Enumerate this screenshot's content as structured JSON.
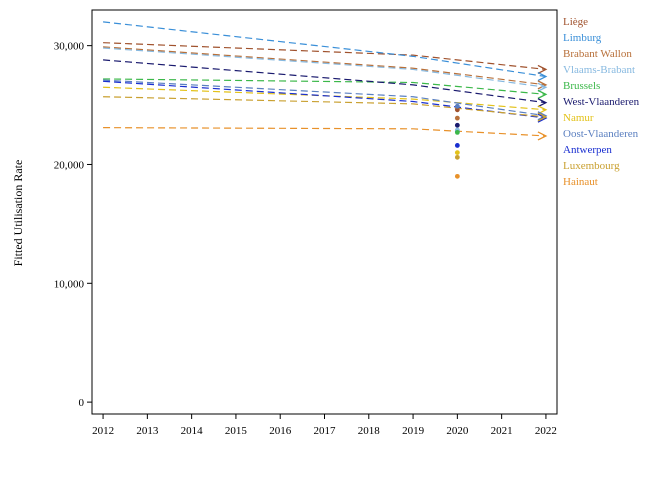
{
  "chart_data": {
    "type": "line",
    "title": "",
    "xlabel": "",
    "ylabel": "Fitted Utilisation Rate",
    "xlim": [
      2011.75,
      2022.25
    ],
    "ylim": [
      -1000,
      33000
    ],
    "x_ticks": [
      2012,
      2013,
      2014,
      2015,
      2016,
      2017,
      2018,
      2019,
      2020,
      2021,
      2022
    ],
    "y_ticks": [
      0,
      10000,
      20000,
      30000
    ],
    "y_tick_labels": [
      "0",
      "10,000",
      "20,000",
      "30,000"
    ],
    "grid": false,
    "legend_position": "right",
    "series": [
      {
        "name": "Liège",
        "color": "#a0522d",
        "trend": [
          [
            2012,
            30250
          ],
          [
            2019,
            29200
          ],
          [
            2022,
            28000
          ]
        ],
        "observed_2020": 24600
      },
      {
        "name": "Limburg",
        "color": "#3a8fd8",
        "trend": [
          [
            2012,
            32000
          ],
          [
            2019,
            29100
          ],
          [
            2022,
            27400
          ]
        ],
        "observed_2020": 22800
      },
      {
        "name": "Brabant Wallon",
        "color": "#b8703a",
        "trend": [
          [
            2012,
            29900
          ],
          [
            2019,
            28100
          ],
          [
            2022,
            26700
          ]
        ],
        "observed_2020": 23900
      },
      {
        "name": "Vlaams-Brabant",
        "color": "#87b9e0",
        "trend": [
          [
            2012,
            29800
          ],
          [
            2019,
            28000
          ],
          [
            2022,
            26500
          ]
        ],
        "observed_2020": 22900
      },
      {
        "name": "Brussels",
        "color": "#3cb84a",
        "trend": [
          [
            2012,
            27200
          ],
          [
            2019,
            26900
          ],
          [
            2022,
            25900
          ]
        ],
        "observed_2020": 22700
      },
      {
        "name": "West-Vlaanderen",
        "color": "#1a1a6e",
        "trend": [
          [
            2012,
            28800
          ],
          [
            2019,
            26700
          ],
          [
            2022,
            25200
          ]
        ],
        "observed_2020": 23300
      },
      {
        "name": "Namur",
        "color": "#e3c21a",
        "trend": [
          [
            2012,
            26500
          ],
          [
            2019,
            25500
          ],
          [
            2022,
            24600
          ]
        ],
        "observed_2020": 21000
      },
      {
        "name": "Oost-Vlaanderen",
        "color": "#5a7fc0",
        "trend": [
          [
            2012,
            27100
          ],
          [
            2019,
            25700
          ],
          [
            2022,
            24100
          ]
        ],
        "observed_2020": 24900
      },
      {
        "name": "Antwerpen",
        "color": "#1a2fd0",
        "trend": [
          [
            2012,
            27000
          ],
          [
            2019,
            25300
          ],
          [
            2022,
            23900
          ]
        ],
        "observed_2020": 21600
      },
      {
        "name": "Luxembourg",
        "color": "#c9a030",
        "trend": [
          [
            2012,
            25700
          ],
          [
            2019,
            25100
          ],
          [
            2022,
            24000
          ]
        ],
        "observed_2020": 20600
      },
      {
        "name": "Hainaut",
        "color": "#e8912a",
        "trend": [
          [
            2012,
            23100
          ],
          [
            2019,
            23000
          ],
          [
            2022,
            22400
          ]
        ],
        "observed_2020": 19000
      }
    ]
  }
}
